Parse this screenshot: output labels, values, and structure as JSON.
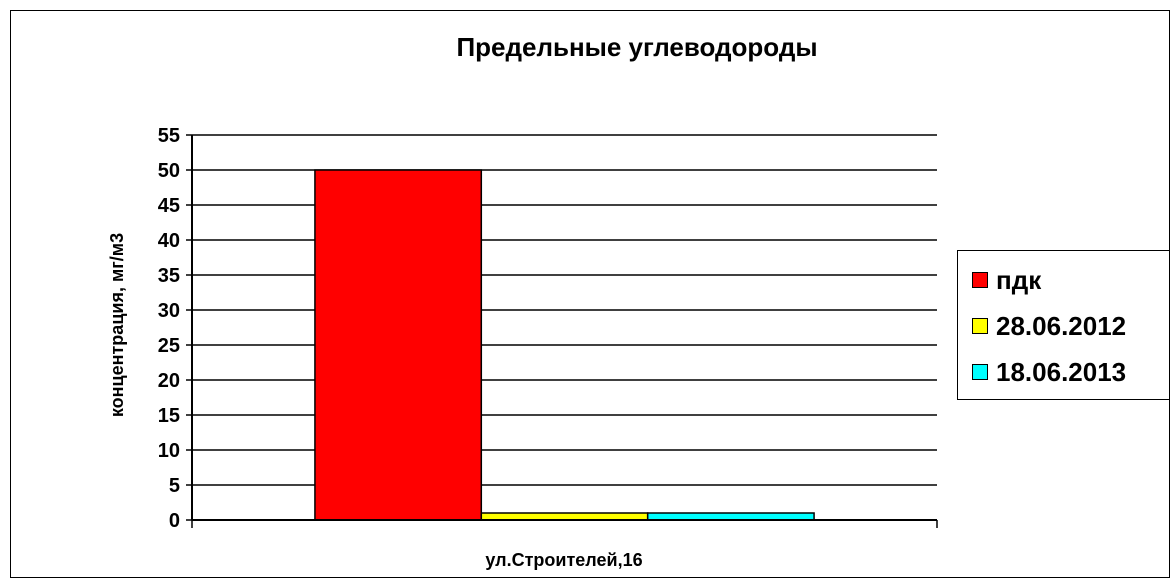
{
  "chart_data": {
    "type": "bar",
    "title": "Предельные углеводороды",
    "ylabel": "концентрация, мг/м3",
    "xlabel": "",
    "categories": [
      "ул.Строителей,16"
    ],
    "series": [
      {
        "name": "пдк",
        "values": [
          50
        ],
        "color": "#ff0000"
      },
      {
        "name": "28.06.2012",
        "values": [
          1
        ],
        "color": "#ffff00"
      },
      {
        "name": "18.06.2013",
        "values": [
          1
        ],
        "color": "#00ffff"
      }
    ],
    "ylim": [
      0,
      55
    ],
    "yticks": [
      0,
      5,
      10,
      15,
      20,
      25,
      30,
      35,
      40,
      45,
      50,
      55
    ],
    "grid": true,
    "legend_position": "right"
  }
}
